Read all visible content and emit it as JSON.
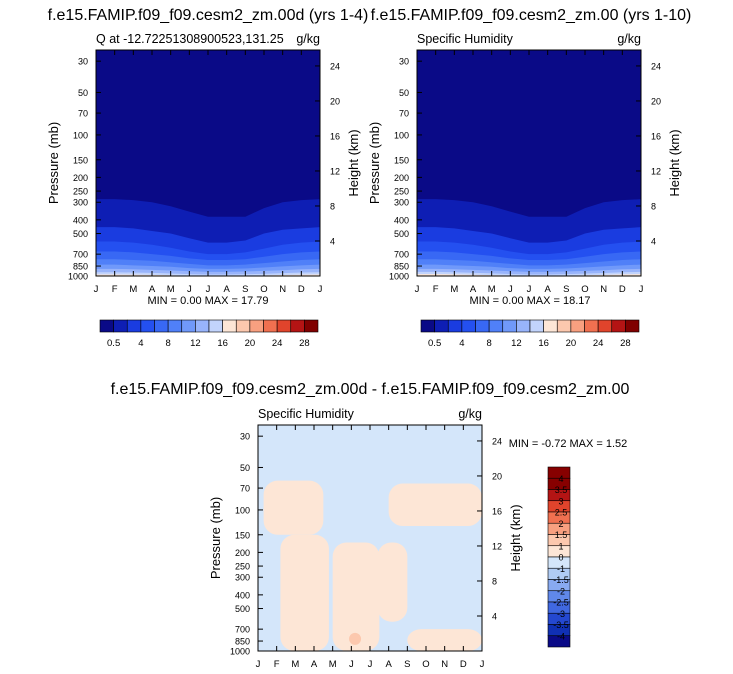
{
  "chart_data": [
    {
      "type": "heatmap",
      "title": "f.e15.FAMIP.f09_f09.cesm2_zm.00d (yrs 1-4)",
      "subtitle_left": "Q at -12.72251308900523,131.25",
      "subtitle_right": "g/kg",
      "xlabel": "",
      "ylabel": "Pressure (mb)",
      "ylabel_right": "Height (km)",
      "x_ticks": [
        "J",
        "F",
        "M",
        "A",
        "M",
        "J",
        "J",
        "A",
        "S",
        "O",
        "N",
        "D",
        "J"
      ],
      "y_ticks": [
        "30",
        "50",
        "70",
        "100",
        "150",
        "200",
        "250",
        "300",
        "400",
        "500",
        "700",
        "850",
        "1000"
      ],
      "y_ticks_right": [
        "24",
        "20",
        "16",
        "12",
        "8",
        "4"
      ],
      "ylim_mb": [
        1000,
        25
      ],
      "stats": "MIN =   0.00 MAX =  17.79",
      "colorbar_levels": [
        0.5,
        2,
        4,
        6,
        8,
        10,
        12,
        14,
        16,
        18,
        20,
        22,
        24,
        26,
        28
      ],
      "colorbar_labels": [
        "0.5",
        "4",
        "8",
        "12",
        "16",
        "20",
        "24",
        "28"
      ],
      "contour_pressure_mb": {
        "0.5": [
          285,
          285,
          290,
          300,
          320,
          350,
          380,
          380,
          380,
          330,
          300,
          290,
          285
        ],
        "2": [
          450,
          450,
          460,
          480,
          500,
          540,
          580,
          580,
          560,
          500,
          470,
          460,
          450
        ],
        "4": [
          570,
          570,
          580,
          600,
          630,
          670,
          700,
          700,
          680,
          640,
          600,
          580,
          570
        ],
        "6": [
          670,
          670,
          680,
          700,
          720,
          750,
          770,
          770,
          760,
          730,
          700,
          680,
          670
        ],
        "8": [
          760,
          760,
          770,
          780,
          800,
          820,
          840,
          840,
          830,
          810,
          790,
          770,
          760
        ],
        "10": [
          830,
          830,
          840,
          850,
          860,
          880,
          890,
          890,
          885,
          870,
          855,
          840,
          830
        ],
        "12": [
          890,
          890,
          895,
          905,
          915,
          925,
          935,
          935,
          930,
          920,
          910,
          895,
          890
        ],
        "14": [
          940,
          940,
          945,
          950,
          960,
          970,
          975,
          975,
          972,
          965,
          955,
          945,
          940
        ],
        "16": [
          975,
          975,
          978,
          982,
          988,
          995,
          998,
          998,
          996,
          990,
          984,
          978,
          975
        ]
      }
    },
    {
      "type": "heatmap",
      "title": "f.e15.FAMIP.f09_f09.cesm2_zm.00 (yrs 1-10)",
      "subtitle_left": "Specific Humidity",
      "subtitle_right": "g/kg",
      "xlabel": "",
      "ylabel": "Pressure (mb)",
      "ylabel_right": "Height (km)",
      "x_ticks": [
        "J",
        "F",
        "M",
        "A",
        "M",
        "J",
        "J",
        "A",
        "S",
        "O",
        "N",
        "D",
        "J"
      ],
      "y_ticks": [
        "30",
        "50",
        "70",
        "100",
        "150",
        "200",
        "250",
        "300",
        "400",
        "500",
        "700",
        "850",
        "1000"
      ],
      "y_ticks_right": [
        "24",
        "20",
        "16",
        "12",
        "8",
        "4"
      ],
      "ylim_mb": [
        1000,
        25
      ],
      "stats": "MIN =   0.00 MAX =  18.17",
      "colorbar_levels": [
        0.5,
        2,
        4,
        6,
        8,
        10,
        12,
        14,
        16,
        18,
        20,
        22,
        24,
        26,
        28
      ],
      "colorbar_labels": [
        "0.5",
        "4",
        "8",
        "12",
        "16",
        "20",
        "24",
        "28"
      ],
      "contour_pressure_mb": {
        "0.5": [
          285,
          285,
          290,
          300,
          320,
          350,
          380,
          380,
          380,
          330,
          300,
          290,
          285
        ],
        "2": [
          450,
          450,
          460,
          480,
          500,
          540,
          580,
          580,
          560,
          500,
          470,
          460,
          450
        ],
        "4": [
          570,
          570,
          580,
          600,
          630,
          670,
          700,
          700,
          680,
          640,
          600,
          580,
          570
        ],
        "6": [
          670,
          670,
          680,
          700,
          720,
          750,
          770,
          770,
          760,
          730,
          700,
          680,
          670
        ],
        "8": [
          760,
          760,
          770,
          780,
          800,
          820,
          840,
          840,
          830,
          810,
          790,
          770,
          760
        ],
        "10": [
          830,
          830,
          840,
          850,
          860,
          880,
          890,
          890,
          885,
          870,
          855,
          840,
          830
        ],
        "12": [
          890,
          890,
          895,
          905,
          915,
          925,
          935,
          935,
          930,
          920,
          910,
          895,
          890
        ],
        "14": [
          935,
          935,
          940,
          948,
          958,
          968,
          975,
          975,
          970,
          962,
          952,
          940,
          935
        ],
        "16": [
          970,
          970,
          974,
          980,
          986,
          993,
          997,
          997,
          995,
          988,
          981,
          974,
          970
        ]
      }
    },
    {
      "type": "heatmap",
      "title": "f.e15.FAMIP.f09_f09.cesm2_zm.00d - f.e15.FAMIP.f09_f09.cesm2_zm.00",
      "subtitle_left": "Specific Humidity",
      "subtitle_right": "g/kg",
      "xlabel": "",
      "ylabel": "Pressure (mb)",
      "ylabel_right": "Height (km)",
      "x_ticks": [
        "J",
        "F",
        "M",
        "A",
        "M",
        "J",
        "J",
        "A",
        "S",
        "O",
        "N",
        "D",
        "J"
      ],
      "y_ticks": [
        "30",
        "50",
        "70",
        "100",
        "150",
        "200",
        "250",
        "300",
        "400",
        "500",
        "700",
        "850",
        "1000"
      ],
      "y_ticks_right": [
        "24",
        "20",
        "16",
        "12",
        "8",
        "4"
      ],
      "ylim_mb": [
        1000,
        25
      ],
      "stats": "MIN =  -0.72 MAX =   1.52",
      "colorbar_levels": [
        4,
        3.5,
        3,
        2.5,
        2,
        1.5,
        1,
        0,
        -1,
        -1.5,
        -2,
        -2.5,
        -3,
        -3.5,
        -4
      ],
      "colorbar_labels": [
        "4",
        "3.5",
        "3",
        "2.5",
        "2",
        "1.5",
        "1",
        "0",
        "-1",
        "-1.5",
        "-2",
        "-2.5",
        "-3",
        "-3.5",
        "-4"
      ],
      "background_value_range": [
        -1,
        0
      ],
      "positive_regions": [
        {
          "name": "upper-left",
          "month_range": [
            0.3,
            3.5
          ],
          "pressure_range_mb": [
            62,
            150
          ]
        },
        {
          "name": "left-column",
          "month_range": [
            1.2,
            3.8
          ],
          "pressure_range_mb": [
            150,
            1000
          ]
        },
        {
          "name": "middle",
          "month_range": [
            4.0,
            6.5
          ],
          "pressure_range_mb": [
            170,
            1000
          ]
        },
        {
          "name": "right-column",
          "month_range": [
            6.4,
            8.0
          ],
          "pressure_range_mb": [
            170,
            620
          ]
        },
        {
          "name": "upper-right",
          "month_range": [
            7.0,
            12.0
          ],
          "pressure_range_mb": [
            65,
            130
          ]
        },
        {
          "name": "lower-right",
          "month_range": [
            8.0,
            12.0
          ],
          "pressure_range_mb": [
            700,
            1000
          ]
        }
      ],
      "local_max": {
        "month": 5.2,
        "pressure_mb": 820,
        "value": 1.52
      }
    }
  ],
  "colors": {
    "ramp_positive": [
      "#0a0a87",
      "#0e1eb4",
      "#1a3ce0",
      "#2450f0",
      "#3868f4",
      "#5080f8",
      "#7099fa",
      "#98b4fb",
      "#c2d4fc",
      "#fde6d6",
      "#fcc8ae",
      "#f8a080",
      "#f07050",
      "#e0442c",
      "#b41414",
      "#800000"
    ],
    "diff_ramp": [
      "#870000",
      "#b41414",
      "#e0442c",
      "#f07050",
      "#f8a080",
      "#fcc8ae",
      "#fde6d6",
      "#d4e6fa",
      "#b0ccf4",
      "#88aaf0",
      "#6088ea",
      "#4068e0",
      "#2448d0",
      "#1030b4",
      "#0a0a87"
    ],
    "diff_background": "#d4e6fa",
    "diff_positive": "#fde6d6",
    "diff_peak": "#fcc8ae"
  }
}
